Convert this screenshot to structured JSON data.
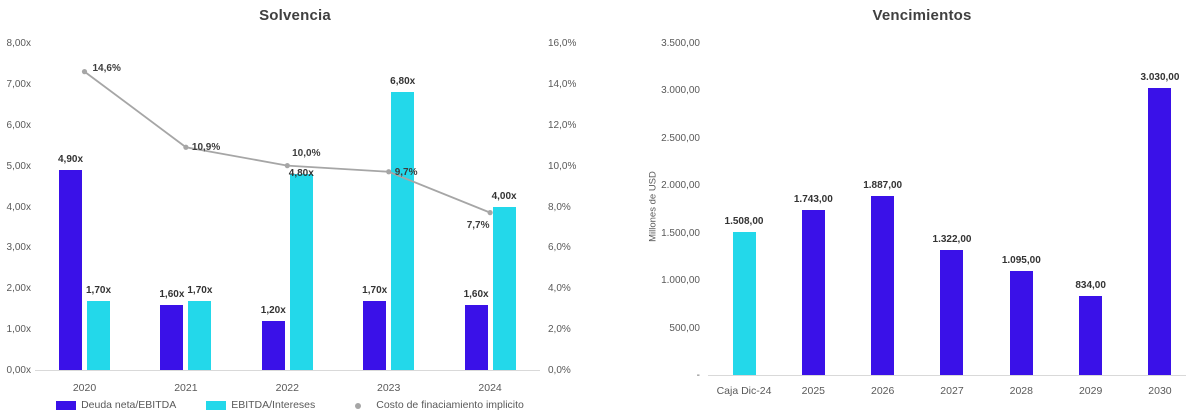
{
  "chart_data": [
    {
      "type": "combo-bar-line",
      "title": "Solvencia",
      "categories": [
        "2020",
        "2021",
        "2022",
        "2023",
        "2024"
      ],
      "series": [
        {
          "name": "Deuda neta/EBITDA",
          "type": "bar",
          "axis": "left",
          "color": "#3a11e8",
          "values": [
            4.9,
            1.6,
            1.2,
            1.7,
            1.6
          ],
          "labels": [
            "4,90x",
            "1,60x",
            "1,20x",
            "1,70x",
            "1,60x"
          ]
        },
        {
          "name": "EBITDA/Intereses",
          "type": "bar",
          "axis": "left",
          "color": "#23d8ea",
          "values": [
            1.7,
            1.7,
            4.8,
            6.8,
            4.0
          ],
          "labels": [
            "1,70x",
            "1,70x",
            "4,80x",
            "6,80x",
            "4,00x"
          ]
        },
        {
          "name": "Costo de finaciamiento implicito",
          "type": "line",
          "axis": "right",
          "color": "#a6a6a6",
          "values": [
            14.6,
            10.9,
            10.0,
            9.7,
            7.7
          ],
          "labels": [
            "14,6%",
            "10,9%",
            "10,0%",
            "9,7%",
            "7,7%"
          ]
        }
      ],
      "left_axis": {
        "min": 0,
        "max": 8,
        "ticks": [
          "0,00x",
          "1,00x",
          "2,00x",
          "3,00x",
          "4,00x",
          "5,00x",
          "6,00x",
          "7,00x",
          "8,00x"
        ]
      },
      "right_axis": {
        "min": 0,
        "max": 16,
        "ticks": [
          "0,0%",
          "2,0%",
          "4,0%",
          "6,0%",
          "8,0%",
          "10,0%",
          "12,0%",
          "14,0%",
          "16,0%"
        ]
      },
      "legend_position": "bottom",
      "grid": false
    },
    {
      "type": "bar",
      "title": "Vencimientos",
      "ylabel": "Millones de USD",
      "categories": [
        "Caja Dic-24",
        "2025",
        "2026",
        "2027",
        "2028",
        "2029",
        "2030"
      ],
      "values": [
        1508,
        1743,
        1887,
        1322,
        1095,
        834,
        3030
      ],
      "labels": [
        "1.508,00",
        "1.743,00",
        "1.887,00",
        "1.322,00",
        "1.095,00",
        "834,00",
        "3.030,00"
      ],
      "bar_colors": [
        "#23d8ea",
        "#3a11e8",
        "#3a11e8",
        "#3a11e8",
        "#3a11e8",
        "#3a11e8",
        "#3a11e8"
      ],
      "y_axis": {
        "min": 0,
        "max": 3500,
        "ticks": [
          "-",
          "500,00",
          "1.000,00",
          "1.500,00",
          "2.000,00",
          "2.500,00",
          "3.000,00",
          "3.500,00"
        ]
      },
      "legend_position": "none",
      "grid": false
    }
  ]
}
